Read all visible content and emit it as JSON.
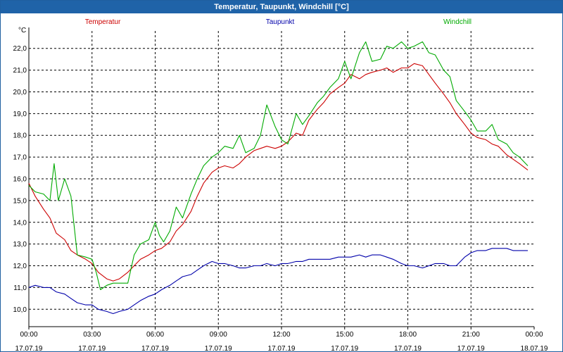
{
  "window": {
    "title": "Temperatur, Taupunkt, Windchill [°C]"
  },
  "chart_data": {
    "type": "line",
    "title": "Temperatur, Taupunkt, Windchill [°C]",
    "ylabel": "°C",
    "ylim": [
      9.2,
      22.8
    ],
    "xlim": [
      0,
      24
    ],
    "grid": true,
    "legend_placement": "top",
    "y_ticks": [
      "10,0",
      "11,0",
      "12,0",
      "13,0",
      "14,0",
      "15,0",
      "16,0",
      "17,0",
      "18,0",
      "19,0",
      "20,0",
      "21,0",
      "22,0"
    ],
    "y_tick_values": [
      10,
      11,
      12,
      13,
      14,
      15,
      16,
      17,
      18,
      19,
      20,
      21,
      22
    ],
    "x_ticks": [
      {
        "x": 0,
        "time": "00:00",
        "date": "17.07.19"
      },
      {
        "x": 3,
        "time": "03:00",
        "date": "17.07.19"
      },
      {
        "x": 6,
        "time": "06:00",
        "date": "17.07.19"
      },
      {
        "x": 9,
        "time": "09:00",
        "date": "17.07.19"
      },
      {
        "x": 12,
        "time": "12:00",
        "date": "17.07.19"
      },
      {
        "x": 15,
        "time": "15:00",
        "date": "17.07.19"
      },
      {
        "x": 18,
        "time": "18:00",
        "date": "17.07.19"
      },
      {
        "x": 21,
        "time": "21:00",
        "date": "17.07.19"
      },
      {
        "x": 24,
        "time": "00:00",
        "date": "18.07.19"
      }
    ],
    "series": [
      {
        "name": "Temperatur",
        "color": "#cc0000",
        "x": [
          0,
          0.3,
          0.7,
          1.0,
          1.3,
          1.7,
          2.0,
          2.3,
          2.7,
          3.0,
          3.3,
          3.7,
          4.0,
          4.3,
          4.7,
          5.0,
          5.3,
          5.7,
          6.0,
          6.3,
          6.7,
          7.0,
          7.3,
          7.7,
          8.0,
          8.3,
          8.7,
          9.0,
          9.3,
          9.7,
          10.0,
          10.3,
          10.7,
          11.0,
          11.3,
          11.7,
          12.0,
          12.3,
          12.7,
          13.0,
          13.3,
          13.7,
          14.0,
          14.3,
          14.7,
          15.0,
          15.3,
          15.7,
          16.0,
          16.3,
          16.7,
          17.0,
          17.3,
          17.7,
          18.0,
          18.3,
          18.7,
          19.0,
          19.3,
          19.7,
          20.0,
          20.3,
          20.7,
          21.0,
          21.3,
          21.7,
          22.0,
          22.3,
          22.7,
          23.0,
          23.3,
          23.7
        ],
        "values": [
          15.8,
          15.2,
          14.6,
          14.2,
          13.5,
          13.2,
          12.7,
          12.5,
          12.3,
          12.1,
          11.7,
          11.4,
          11.3,
          11.4,
          11.7,
          12.0,
          12.3,
          12.5,
          12.7,
          12.8,
          13.1,
          13.6,
          13.9,
          14.5,
          15.2,
          15.8,
          16.3,
          16.5,
          16.6,
          16.5,
          16.7,
          17.0,
          17.3,
          17.4,
          17.5,
          17.4,
          17.5,
          17.7,
          18.1,
          18.0,
          18.7,
          19.2,
          19.5,
          19.9,
          20.2,
          20.4,
          20.8,
          20.6,
          20.8,
          20.9,
          21.0,
          21.1,
          20.9,
          21.1,
          21.1,
          21.3,
          21.2,
          20.8,
          20.4,
          19.9,
          19.5,
          19.0,
          18.5,
          18.1,
          17.9,
          17.8,
          17.6,
          17.5,
          17.1,
          16.9,
          16.7,
          16.4
        ]
      },
      {
        "name": "Taupunkt",
        "color": "#0000aa",
        "x": [
          0,
          0.3,
          0.7,
          1.0,
          1.3,
          1.7,
          2.0,
          2.3,
          2.7,
          3.0,
          3.3,
          3.7,
          4.0,
          4.3,
          4.7,
          5.0,
          5.3,
          5.7,
          6.0,
          6.3,
          6.7,
          7.0,
          7.3,
          7.7,
          8.0,
          8.3,
          8.7,
          9.0,
          9.3,
          9.7,
          10.0,
          10.3,
          10.7,
          11.0,
          11.3,
          11.7,
          12.0,
          12.3,
          12.7,
          13.0,
          13.3,
          13.7,
          14.0,
          14.3,
          14.7,
          15.0,
          15.3,
          15.7,
          16.0,
          16.3,
          16.7,
          17.0,
          17.3,
          17.7,
          18.0,
          18.3,
          18.7,
          19.0,
          19.3,
          19.7,
          20.0,
          20.3,
          20.7,
          21.0,
          21.3,
          21.7,
          22.0,
          22.3,
          22.7,
          23.0,
          23.3,
          23.7
        ],
        "values": [
          11.0,
          11.1,
          11.0,
          11.0,
          10.8,
          10.7,
          10.5,
          10.3,
          10.2,
          10.2,
          10.0,
          9.9,
          9.8,
          9.9,
          10.0,
          10.2,
          10.4,
          10.6,
          10.7,
          10.9,
          11.1,
          11.3,
          11.5,
          11.6,
          11.8,
          12.0,
          12.2,
          12.1,
          12.1,
          12.0,
          11.9,
          11.9,
          12.0,
          12.0,
          12.1,
          12.0,
          12.1,
          12.1,
          12.2,
          12.2,
          12.3,
          12.3,
          12.3,
          12.3,
          12.4,
          12.4,
          12.4,
          12.5,
          12.4,
          12.5,
          12.5,
          12.4,
          12.3,
          12.1,
          12.0,
          12.0,
          11.9,
          12.0,
          12.1,
          12.1,
          12.0,
          12.0,
          12.4,
          12.6,
          12.7,
          12.7,
          12.8,
          12.8,
          12.8,
          12.7,
          12.7,
          12.7
        ]
      },
      {
        "name": "Windchill",
        "color": "#00aa00",
        "x": [
          0,
          0.3,
          0.7,
          1.0,
          1.2,
          1.4,
          1.7,
          2.0,
          2.3,
          2.7,
          3.0,
          3.2,
          3.4,
          3.7,
          4.0,
          4.3,
          4.7,
          5.0,
          5.3,
          5.7,
          6.0,
          6.2,
          6.4,
          6.7,
          7.0,
          7.3,
          7.7,
          8.0,
          8.3,
          8.7,
          9.0,
          9.3,
          9.7,
          10.0,
          10.3,
          10.7,
          11.0,
          11.3,
          11.7,
          12.0,
          12.3,
          12.7,
          13.0,
          13.3,
          13.7,
          14.0,
          14.3,
          14.7,
          15.0,
          15.3,
          15.7,
          16.0,
          16.3,
          16.7,
          17.0,
          17.3,
          17.7,
          18.0,
          18.3,
          18.7,
          19.0,
          19.3,
          19.7,
          20.0,
          20.3,
          20.7,
          21.0,
          21.3,
          21.7,
          22.0,
          22.3,
          22.7,
          23.0,
          23.3,
          23.7
        ],
        "values": [
          15.7,
          15.4,
          15.3,
          15.0,
          16.7,
          15.0,
          16.0,
          15.2,
          12.5,
          12.4,
          12.3,
          11.7,
          10.9,
          11.1,
          11.2,
          11.2,
          11.2,
          12.5,
          13.0,
          13.2,
          14.0,
          13.4,
          13.1,
          13.6,
          14.7,
          14.2,
          15.3,
          16.0,
          16.6,
          17.0,
          17.2,
          17.5,
          17.4,
          18.0,
          17.2,
          17.4,
          18.0,
          19.4,
          18.4,
          17.8,
          17.6,
          19.0,
          18.5,
          18.9,
          19.5,
          19.8,
          20.2,
          20.6,
          21.4,
          20.6,
          21.8,
          22.3,
          21.4,
          21.5,
          22.1,
          22.0,
          22.3,
          22.0,
          22.1,
          22.3,
          21.8,
          21.7,
          21.0,
          20.7,
          19.6,
          19.1,
          18.7,
          18.2,
          18.2,
          18.5,
          17.8,
          17.6,
          17.2,
          17.0,
          16.6
        ]
      }
    ]
  }
}
